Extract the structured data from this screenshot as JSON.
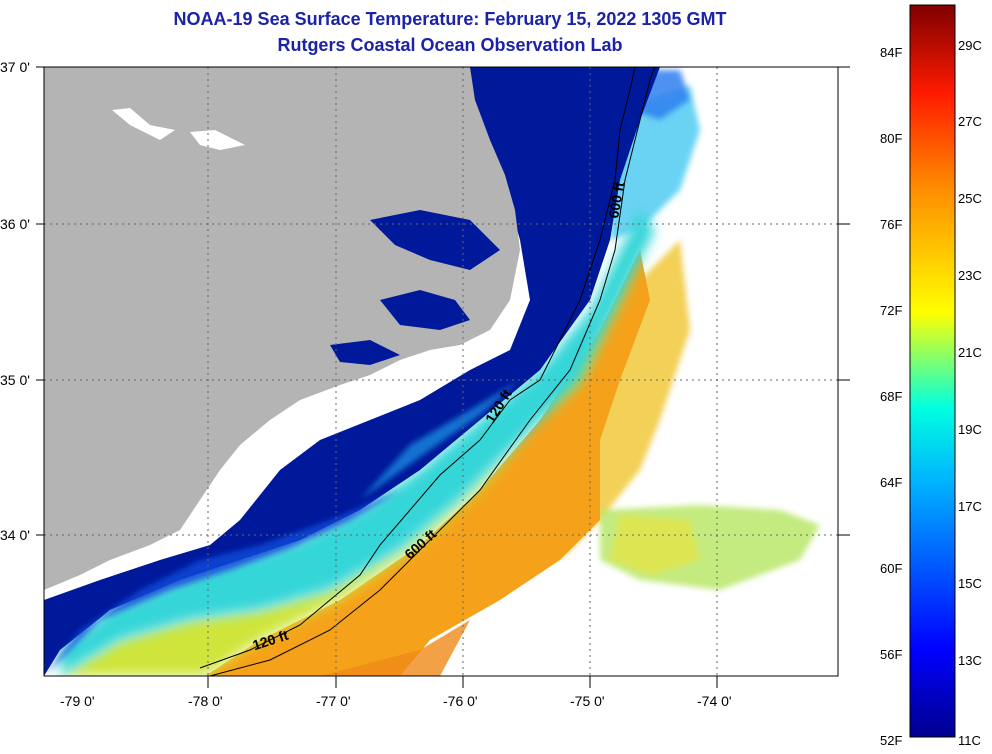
{
  "header": {
    "title": "NOAA-19 Sea Surface Temperature:  February 15, 2022 1305 GMT",
    "subtitle": "Rutgers Coastal Ocean Observation Lab"
  },
  "axes": {
    "lat_labels": [
      "37 0'",
      "36 0'",
      "35 0'",
      "34 0'"
    ],
    "lon_labels": [
      "-79 0'",
      "-78 0'",
      "-77 0'",
      "-76 0'",
      "-75 0'",
      "-74 0'"
    ]
  },
  "contours": {
    "label_120_north": "120 ft",
    "label_120_south": "120 ft",
    "label_600_north": "600 ft",
    "label_600_south": "600 ft"
  },
  "colorbar": {
    "fahrenheit": [
      "84F",
      "80F",
      "76F",
      "72F",
      "68F",
      "64F",
      "60F",
      "56F",
      "52F"
    ],
    "celsius": [
      "29C",
      "27C",
      "25C",
      "23C",
      "21C",
      "19C",
      "17C",
      "15C",
      "13C",
      "11C"
    ],
    "colors": [
      "#7f0000",
      "#ff0000",
      "#ff7f00",
      "#ffff00",
      "#7fff7f",
      "#00ffff",
      "#007fff",
      "#0000ff",
      "#00008f"
    ]
  },
  "map_colors": {
    "land": "#b4b4b4",
    "cold_water": "#00189a",
    "gulf_stream": "#f5a21a",
    "no_data": "#ffffff"
  }
}
